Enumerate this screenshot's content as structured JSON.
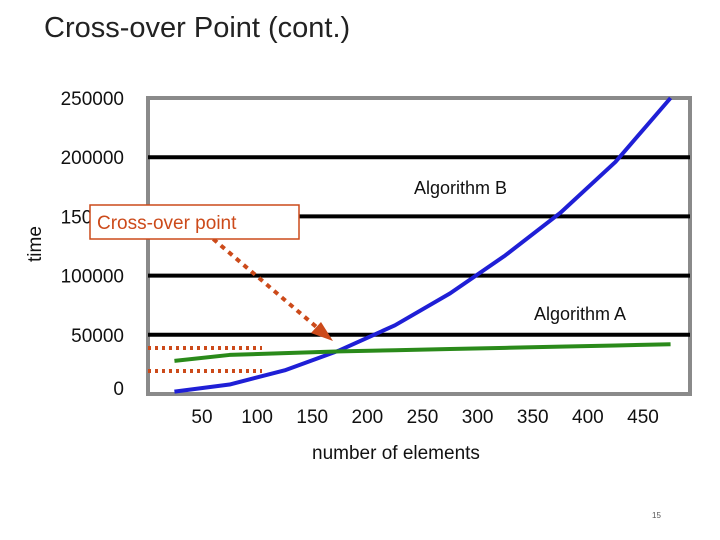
{
  "slide": {
    "title": "Cross-over Point (cont.)",
    "page_number": "15"
  },
  "chart_data": {
    "type": "line",
    "xlabel": "number of elements",
    "ylabel": "time",
    "x_ticks": [
      "50",
      "100",
      "150",
      "200",
      "250",
      "300",
      "350",
      "400",
      "450"
    ],
    "y_ticks": [
      "0",
      "50000",
      "100000",
      "150000",
      "200000",
      "250000"
    ],
    "xlim": [
      0,
      500
    ],
    "ylim": [
      0,
      250000
    ],
    "grid": true,
    "series": [
      {
        "name": "Algorithm B",
        "color": "#1f1fd6",
        "x": [
          25,
          75,
          125,
          175,
          225,
          275,
          325,
          375,
          425,
          475
        ],
        "y": [
          2000,
          8000,
          20000,
          37000,
          58000,
          85000,
          117000,
          153000,
          196000,
          250000
        ]
      },
      {
        "name": "Algorithm A",
        "color": "#2a8a1a",
        "x": [
          25,
          75,
          125,
          175,
          225,
          275,
          325,
          375,
          425,
          475
        ],
        "y": [
          28000,
          33000,
          34500,
          36000,
          37000,
          38000,
          39000,
          40000,
          41000,
          42000
        ]
      }
    ],
    "annotations": {
      "series_labels": [
        "Algorithm B",
        "Algorithm A"
      ],
      "callout": "Cross-over point",
      "callout_color": "#cc4a1a"
    }
  }
}
